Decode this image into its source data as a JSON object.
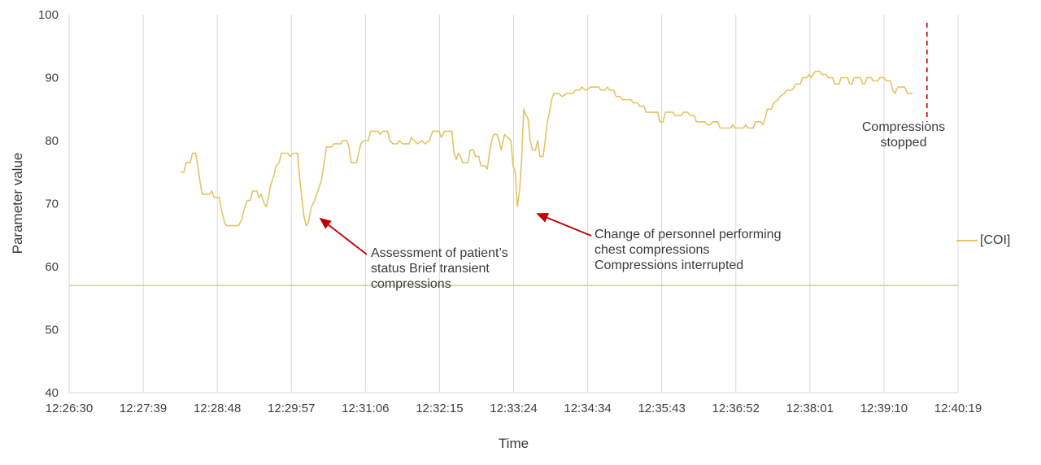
{
  "chart_data": {
    "type": "line",
    "title": "",
    "xlabel": "Time",
    "ylabel": "Parameter value",
    "ylim": [
      40,
      100
    ],
    "yticks": [
      40,
      50,
      60,
      70,
      80,
      90,
      100
    ],
    "xticks": [
      "12:26:30",
      "12:27:39",
      "12:28:48",
      "12:29:57",
      "12:31:06",
      "12:32:15",
      "12:33:24",
      "12:34:34",
      "12:35:43",
      "12:36:52",
      "12:38:01",
      "12:39:10",
      "12:40:19"
    ],
    "x_unit": "seconds after 12:26:30",
    "x_range_s": [
      0,
      829
    ],
    "grid": "vertical-only",
    "legend_position": "right",
    "series": [
      {
        "name": "[COI]",
        "color": "#e5c365",
        "points": [
          [
            104,
            75
          ],
          [
            107,
            75
          ],
          [
            109,
            76.5
          ],
          [
            113,
            76.5
          ],
          [
            115,
            78
          ],
          [
            118,
            78
          ],
          [
            120,
            76
          ],
          [
            122,
            73.5
          ],
          [
            124,
            71.5
          ],
          [
            131,
            71.5
          ],
          [
            133,
            72
          ],
          [
            135,
            71
          ],
          [
            140,
            71
          ],
          [
            142,
            69
          ],
          [
            145,
            67
          ],
          [
            147,
            66.5
          ],
          [
            158,
            66.5
          ],
          [
            161,
            67.5
          ],
          [
            163,
            69
          ],
          [
            166,
            70.5
          ],
          [
            169,
            70.5
          ],
          [
            171,
            72
          ],
          [
            175,
            72
          ],
          [
            177,
            71
          ],
          [
            179,
            71.5
          ],
          [
            182,
            70
          ],
          [
            184,
            69.5
          ],
          [
            186,
            71
          ],
          [
            188,
            73
          ],
          [
            191,
            74.5
          ],
          [
            193,
            76
          ],
          [
            196,
            76.5
          ],
          [
            198,
            78
          ],
          [
            204,
            78
          ],
          [
            206,
            77.5
          ],
          [
            209,
            78
          ],
          [
            213,
            78
          ],
          [
            215,
            74
          ],
          [
            217,
            71
          ],
          [
            219,
            68
          ],
          [
            221,
            66.5
          ],
          [
            223,
            67
          ],
          [
            226,
            69.5
          ],
          [
            229,
            70.5
          ],
          [
            232,
            72
          ],
          [
            235,
            73.5
          ],
          [
            237,
            75.5
          ],
          [
            240,
            79
          ],
          [
            245,
            79
          ],
          [
            247,
            79.5
          ],
          [
            253,
            79.5
          ],
          [
            255,
            80
          ],
          [
            259,
            80
          ],
          [
            261,
            79
          ],
          [
            263,
            76.5
          ],
          [
            268,
            76.5
          ],
          [
            270,
            78
          ],
          [
            272,
            79.5
          ],
          [
            275,
            80
          ],
          [
            279,
            80
          ],
          [
            281,
            81.5
          ],
          [
            288,
            81.5
          ],
          [
            290,
            81
          ],
          [
            293,
            81.5
          ],
          [
            297,
            81.5
          ],
          [
            299,
            80
          ],
          [
            302,
            79.5
          ],
          [
            306,
            79.5
          ],
          [
            308,
            80
          ],
          [
            311,
            79.5
          ],
          [
            317,
            79.5
          ],
          [
            319,
            80.5
          ],
          [
            322,
            80
          ],
          [
            325,
            79.5
          ],
          [
            329,
            80
          ],
          [
            332,
            79.5
          ],
          [
            336,
            80
          ],
          [
            339,
            81.5
          ],
          [
            345,
            81.5
          ],
          [
            347,
            80.5
          ],
          [
            350,
            81.5
          ],
          [
            357,
            81.5
          ],
          [
            359,
            78
          ],
          [
            361,
            77
          ],
          [
            363,
            78
          ],
          [
            365,
            77.5
          ],
          [
            367,
            76.5
          ],
          [
            372,
            76.5
          ],
          [
            374,
            78.5
          ],
          [
            377,
            78.5
          ],
          [
            379,
            77.5
          ],
          [
            382,
            77.5
          ],
          [
            384,
            76
          ],
          [
            388,
            76
          ],
          [
            390,
            75.5
          ],
          [
            392,
            78
          ],
          [
            394,
            80
          ],
          [
            396,
            81
          ],
          [
            399,
            81
          ],
          [
            401,
            80
          ],
          [
            403,
            78.5
          ],
          [
            406,
            81
          ],
          [
            409,
            80.5
          ],
          [
            412,
            80
          ],
          [
            414,
            76
          ],
          [
            416,
            75
          ],
          [
            418,
            69.5
          ],
          [
            420,
            72
          ],
          [
            422,
            77
          ],
          [
            424,
            85
          ],
          [
            426,
            84
          ],
          [
            428,
            83.5
          ],
          [
            430,
            80
          ],
          [
            432,
            78.5
          ],
          [
            435,
            78.5
          ],
          [
            437,
            80
          ],
          [
            439,
            77.5
          ],
          [
            442,
            77.5
          ],
          [
            444,
            80
          ],
          [
            446,
            83
          ],
          [
            448,
            84.5
          ],
          [
            450,
            86.5
          ],
          [
            452,
            87.5
          ],
          [
            456,
            87.5
          ],
          [
            460,
            87
          ],
          [
            464,
            87.5
          ],
          [
            470,
            87.5
          ],
          [
            472,
            88
          ],
          [
            476,
            88
          ],
          [
            478,
            88.5
          ],
          [
            482,
            88
          ],
          [
            486,
            88.5
          ],
          [
            494,
            88.5
          ],
          [
            496,
            88
          ],
          [
            500,
            88
          ],
          [
            502,
            88.5
          ],
          [
            504,
            88
          ],
          [
            508,
            88
          ],
          [
            510,
            87
          ],
          [
            514,
            87
          ],
          [
            516,
            86.5
          ],
          [
            524,
            86.5
          ],
          [
            526,
            86
          ],
          [
            530,
            86
          ],
          [
            532,
            85.5
          ],
          [
            536,
            85.5
          ],
          [
            538,
            84.5
          ],
          [
            549,
            84.5
          ],
          [
            551,
            83
          ],
          [
            554,
            83
          ],
          [
            556,
            84.5
          ],
          [
            563,
            84.5
          ],
          [
            565,
            84
          ],
          [
            571,
            84
          ],
          [
            573,
            84.5
          ],
          [
            577,
            84.5
          ],
          [
            579,
            84
          ],
          [
            583,
            84
          ],
          [
            585,
            83
          ],
          [
            593,
            83
          ],
          [
            595,
            82.5
          ],
          [
            598,
            82.5
          ],
          [
            600,
            83
          ],
          [
            605,
            83
          ],
          [
            607,
            82
          ],
          [
            617,
            82
          ],
          [
            619,
            82.5
          ],
          [
            621,
            82
          ],
          [
            629,
            82
          ],
          [
            631,
            82.5
          ],
          [
            633,
            82
          ],
          [
            638,
            82
          ],
          [
            640,
            83
          ],
          [
            645,
            83
          ],
          [
            647,
            82.5
          ],
          [
            649,
            83.5
          ],
          [
            651,
            85
          ],
          [
            655,
            85
          ],
          [
            657,
            86
          ],
          [
            661,
            86.5
          ],
          [
            663,
            87
          ],
          [
            667,
            87.5
          ],
          [
            669,
            88
          ],
          [
            674,
            88
          ],
          [
            676,
            88.5
          ],
          [
            678,
            89
          ],
          [
            682,
            89
          ],
          [
            684,
            90
          ],
          [
            688,
            90
          ],
          [
            690,
            90.5
          ],
          [
            692,
            90
          ],
          [
            696,
            91
          ],
          [
            700,
            91
          ],
          [
            702,
            90.5
          ],
          [
            706,
            90.5
          ],
          [
            708,
            90
          ],
          [
            712,
            90
          ],
          [
            714,
            89
          ],
          [
            718,
            89
          ],
          [
            720,
            90
          ],
          [
            726,
            90
          ],
          [
            728,
            89
          ],
          [
            730,
            89
          ],
          [
            732,
            90
          ],
          [
            738,
            90
          ],
          [
            740,
            89
          ],
          [
            742,
            89
          ],
          [
            744,
            90
          ],
          [
            748,
            90
          ],
          [
            750,
            89.5
          ],
          [
            754,
            89.5
          ],
          [
            756,
            90
          ],
          [
            760,
            90
          ],
          [
            762,
            89.5
          ],
          [
            766,
            89.5
          ],
          [
            768,
            88
          ],
          [
            770,
            87.5
          ],
          [
            773,
            88.5
          ],
          [
            776,
            88.5
          ],
          [
            779,
            88.5
          ],
          [
            782,
            87.5
          ],
          [
            786,
            87.5
          ]
        ]
      }
    ],
    "threshold_line": {
      "value": 57,
      "color": "#c3d69b"
    },
    "annotations": [
      {
        "id": "assessment",
        "lines": [
          "Assessment of patient’s",
          "status Brief transient",
          "compressions"
        ],
        "target": {
          "x_s": 221,
          "value": 66.5
        }
      },
      {
        "id": "personnel-change",
        "lines": [
          "Change of personnel performing",
          "chest compressions",
          "Compressions interrupted"
        ],
        "target": {
          "x_s": 418,
          "value": 69.5
        }
      },
      {
        "id": "compressions-stopped",
        "lines": [
          "Compressions",
          "stopped"
        ],
        "marker_x_s": 800
      }
    ],
    "colors": {
      "series": "#e5c365",
      "threshold": "#c3d69b",
      "grid": "#d9d9d9",
      "annotation": "#c00000",
      "text": "#3f3f3f"
    }
  }
}
